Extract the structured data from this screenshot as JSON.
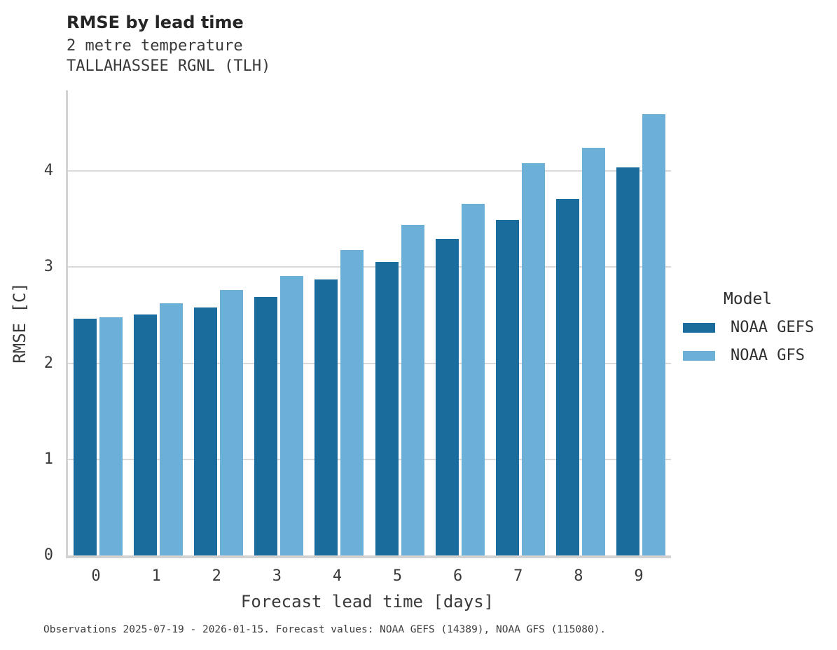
{
  "header": {
    "title": "RMSE by lead time",
    "subtitle_variable": "2 metre temperature",
    "subtitle_station": "TALLAHASSEE RGNL (TLH)"
  },
  "chart_data": {
    "type": "bar",
    "title": "RMSE by lead time",
    "subtitle": [
      "2 metre temperature",
      "TALLAHASSEE RGNL (TLH)"
    ],
    "xlabel": "Forecast lead time [days]",
    "ylabel": "RMSE [C]",
    "categories": [
      "0",
      "1",
      "2",
      "3",
      "4",
      "5",
      "6",
      "7",
      "8",
      "9"
    ],
    "y_ticks": [
      0,
      1,
      2,
      3,
      4
    ],
    "ylim": [
      0,
      4.84
    ],
    "grid": "horizontal",
    "legend": {
      "title": "Model",
      "position": "right"
    },
    "series": [
      {
        "name": "NOAA GEFS",
        "color": "#1a6c9c",
        "values": [
          2.46,
          2.51,
          2.58,
          2.69,
          2.87,
          3.05,
          3.29,
          3.49,
          3.71,
          4.04
        ]
      },
      {
        "name": "NOAA GFS",
        "color": "#6cb0d8",
        "values": [
          2.48,
          2.62,
          2.76,
          2.91,
          3.18,
          3.44,
          3.66,
          4.08,
          4.24,
          4.59
        ]
      }
    ]
  },
  "footer": {
    "note": "Observations 2025-07-19 - 2026-01-15. Forecast values: NOAA GEFS (14389), NOAA GFS (115080)."
  }
}
